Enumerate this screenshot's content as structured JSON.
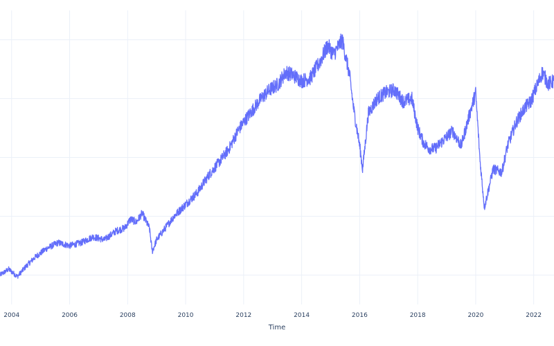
{
  "chart_data": {
    "type": "line",
    "title": "",
    "xlabel": "Time",
    "ylabel": "",
    "x_tick_labels": [
      "2004",
      "2006",
      "2008",
      "2010",
      "2012",
      "2014",
      "2016",
      "2018",
      "2020",
      "2022"
    ],
    "x_range": [
      2003.6,
      2022.7
    ],
    "y_range": [
      0,
      10
    ],
    "y_gridlines": [
      1,
      3,
      5,
      7,
      9
    ],
    "grid": true,
    "legend": "none",
    "line_color": "#636efa",
    "series": [
      {
        "x": [
          2003.6,
          2003.9,
          2004.2,
          2004.5,
          2004.8,
          2005.2,
          2005.6,
          2006.0,
          2006.4,
          2006.8,
          2007.2,
          2007.6,
          2007.9,
          2008.1,
          2008.3,
          2008.5,
          2008.75,
          2008.85,
          2009.0,
          2009.3,
          2009.6,
          2010.0,
          2010.4,
          2010.8,
          2011.2,
          2011.5,
          2011.8,
          2012.0,
          2012.3,
          2012.6,
          2012.9,
          2013.2,
          2013.45,
          2013.7,
          2014.0,
          2014.3,
          2014.6,
          2014.9,
          2015.1,
          2015.4,
          2015.65,
          2015.8,
          2016.0,
          2016.1,
          2016.3,
          2016.6,
          2016.9,
          2017.2,
          2017.5,
          2017.8,
          2018.0,
          2018.2,
          2018.4,
          2018.6,
          2018.9,
          2019.2,
          2019.5,
          2019.8,
          2020.0,
          2020.15,
          2020.3,
          2020.6,
          2020.9,
          2021.1,
          2021.4,
          2021.7,
          2021.9,
          2022.1,
          2022.3,
          2022.5,
          2022.7
        ],
        "y": [
          1.0,
          1.2,
          0.95,
          1.3,
          1.6,
          1.9,
          2.1,
          2.0,
          2.1,
          2.3,
          2.2,
          2.5,
          2.6,
          2.9,
          2.8,
          3.1,
          2.6,
          1.8,
          2.2,
          2.6,
          3.0,
          3.4,
          3.8,
          4.4,
          4.9,
          5.3,
          5.9,
          6.2,
          6.6,
          7.0,
          7.3,
          7.5,
          7.9,
          7.8,
          7.6,
          7.7,
          8.2,
          8.8,
          8.5,
          9.0,
          7.8,
          6.6,
          5.4,
          4.6,
          6.5,
          7.0,
          7.2,
          7.3,
          6.9,
          7.0,
          6.0,
          5.5,
          5.3,
          5.3,
          5.6,
          5.9,
          5.4,
          6.5,
          7.2,
          4.9,
          3.3,
          4.6,
          4.5,
          5.4,
          6.2,
          6.7,
          6.9,
          7.4,
          7.9,
          7.5,
          7.6
        ]
      }
    ]
  }
}
